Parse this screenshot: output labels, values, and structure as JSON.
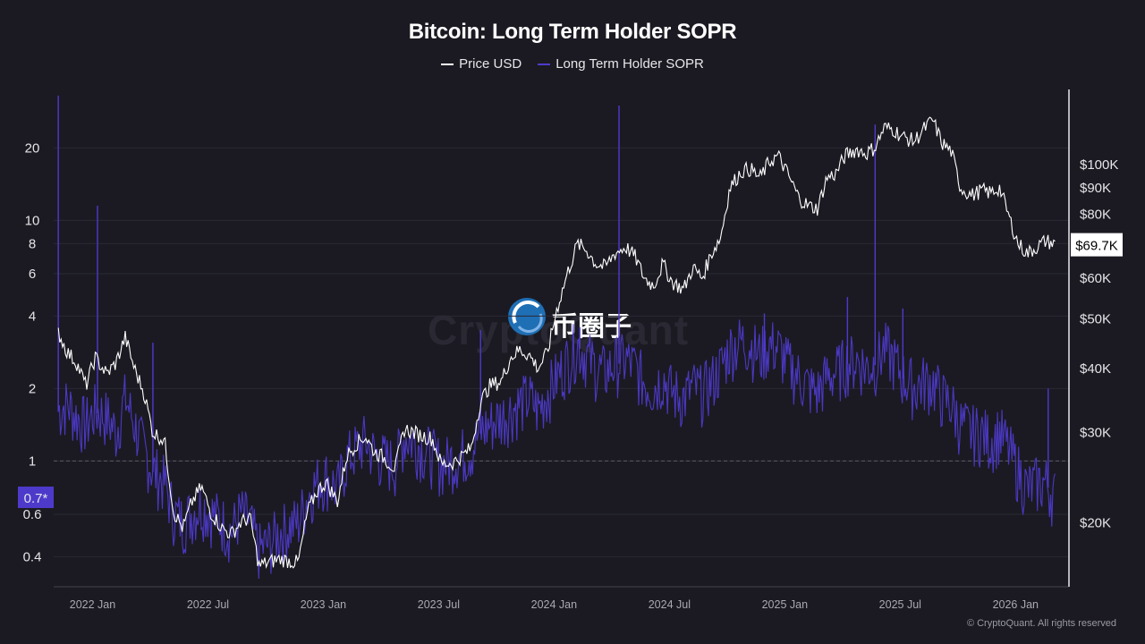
{
  "title": "Bitcoin: Long Term Holder SOPR",
  "legend": {
    "price_label": "Price USD",
    "sopr_label": "Long Term Holder SOPR"
  },
  "watermark": {
    "faint_text": "CryptoQuant",
    "logo_text": "币圈子"
  },
  "copyright": "© CryptoQuant. All rights reserved",
  "colors": {
    "background": "#1b1a22",
    "price": "#ffffff",
    "sopr": "#4d3acb",
    "sopr_badge": "#4d3acb",
    "grid": "#2a2933"
  },
  "chart_data": {
    "type": "line",
    "title": "Bitcoin: Long Term Holder SOPR",
    "x_ticks": [
      "2022 Jan",
      "2022 Jul",
      "2023 Jan",
      "2023 Jul",
      "2024 Jan",
      "2024 Jul",
      "2025 Jan",
      "2025 Jul",
      "2026 Jan"
    ],
    "x_tick_dates": [
      2022.0,
      2022.5,
      2023.0,
      2023.5,
      2024.0,
      2024.5,
      2025.0,
      2025.5,
      2026.0
    ],
    "x_range": [
      2021.94,
      2026.34
    ],
    "left_axis": {
      "scale": "log",
      "range": [
        0.3,
        35
      ],
      "ticks": [
        0.4,
        0.6,
        1,
        2,
        4,
        6,
        8,
        10,
        20
      ],
      "tick_labels": [
        "0.4",
        "0.6",
        "1",
        "2",
        "4",
        "6",
        "8",
        "10",
        "20"
      ],
      "reference_line": 1,
      "current_label": "0.7*"
    },
    "right_axis": {
      "scale": "log",
      "range": [
        15000,
        140000
      ],
      "ticks": [
        20000,
        30000,
        40000,
        50000,
        60000,
        80000,
        90000,
        100000
      ],
      "tick_labels": [
        "$20K",
        "$30K",
        "$40K",
        "$50K",
        "$60K",
        "$80K",
        "$90K",
        "$100K"
      ],
      "current_label": "$69.7K"
    },
    "series": [
      {
        "name": "Price USD",
        "axis": "right",
        "points": [
          [
            2021.96,
            47000
          ],
          [
            2022.0,
            43000
          ],
          [
            2022.04,
            41000
          ],
          [
            2022.08,
            37000
          ],
          [
            2022.12,
            42000
          ],
          [
            2022.17,
            39000
          ],
          [
            2022.21,
            41000
          ],
          [
            2022.25,
            46000
          ],
          [
            2022.29,
            40000
          ],
          [
            2022.33,
            36000
          ],
          [
            2022.37,
            30000
          ],
          [
            2022.42,
            29000
          ],
          [
            2022.46,
            21000
          ],
          [
            2022.5,
            19500
          ],
          [
            2022.54,
            22000
          ],
          [
            2022.58,
            23500
          ],
          [
            2022.62,
            21000
          ],
          [
            2022.67,
            19500
          ],
          [
            2022.71,
            19000
          ],
          [
            2022.75,
            20000
          ],
          [
            2022.79,
            20500
          ],
          [
            2022.83,
            16500
          ],
          [
            2022.88,
            16800
          ],
          [
            2022.92,
            17000
          ],
          [
            2023.0,
            16700
          ],
          [
            2023.04,
            21000
          ],
          [
            2023.08,
            23000
          ],
          [
            2023.12,
            24000
          ],
          [
            2023.17,
            22000
          ],
          [
            2023.21,
            27000
          ],
          [
            2023.25,
            28500
          ],
          [
            2023.29,
            29500
          ],
          [
            2023.33,
            27500
          ],
          [
            2023.37,
            26800
          ],
          [
            2023.42,
            25500
          ],
          [
            2023.46,
            30500
          ],
          [
            2023.5,
            30000
          ],
          [
            2023.54,
            29500
          ],
          [
            2023.58,
            29200
          ],
          [
            2023.62,
            26000
          ],
          [
            2023.67,
            26200
          ],
          [
            2023.71,
            27000
          ],
          [
            2023.75,
            28000
          ],
          [
            2023.79,
            34500
          ],
          [
            2023.83,
            37000
          ],
          [
            2023.88,
            37800
          ],
          [
            2023.92,
            42000
          ],
          [
            2023.96,
            43500
          ],
          [
            2024.0,
            42500
          ],
          [
            2024.04,
            40000
          ],
          [
            2024.08,
            43000
          ],
          [
            2024.12,
            52000
          ],
          [
            2024.17,
            62000
          ],
          [
            2024.21,
            70000
          ],
          [
            2024.25,
            68000
          ],
          [
            2024.29,
            64000
          ],
          [
            2024.33,
            63000
          ],
          [
            2024.37,
            67000
          ],
          [
            2024.42,
            69000
          ],
          [
            2024.46,
            66000
          ],
          [
            2024.5,
            60000
          ],
          [
            2024.54,
            58000
          ],
          [
            2024.58,
            64000
          ],
          [
            2024.62,
            59000
          ],
          [
            2024.67,
            57000
          ],
          [
            2024.71,
            63000
          ],
          [
            2024.75,
            60000
          ],
          [
            2024.79,
            67000
          ],
          [
            2024.83,
            72000
          ],
          [
            2024.87,
            90000
          ],
          [
            2024.92,
            97000
          ],
          [
            2024.96,
            98000
          ],
          [
            2025.0,
            94000
          ],
          [
            2025.04,
            101000
          ],
          [
            2025.08,
            104000
          ],
          [
            2025.12,
            96000
          ],
          [
            2025.17,
            86000
          ],
          [
            2025.21,
            83000
          ],
          [
            2025.25,
            82000
          ],
          [
            2025.29,
            94000
          ],
          [
            2025.33,
            96000
          ],
          [
            2025.37,
            104000
          ],
          [
            2025.42,
            107000
          ],
          [
            2025.46,
            105000
          ],
          [
            2025.5,
            108000
          ],
          [
            2025.54,
            118000
          ],
          [
            2025.58,
            117000
          ],
          [
            2025.62,
            113000
          ],
          [
            2025.67,
            111000
          ],
          [
            2025.71,
            117000
          ],
          [
            2025.75,
            122000
          ],
          [
            2025.79,
            110000
          ],
          [
            2025.83,
            106000
          ],
          [
            2025.87,
            90000
          ],
          [
            2025.92,
            87000
          ],
          [
            2025.96,
            89000
          ],
          [
            2026.0,
            88000
          ],
          [
            2026.04,
            90000
          ],
          [
            2026.08,
            79000
          ],
          [
            2026.12,
            70000
          ],
          [
            2026.16,
            67000
          ],
          [
            2026.2,
            69000
          ],
          [
            2026.24,
            71000
          ],
          [
            2026.28,
            69700
          ]
        ]
      },
      {
        "name": "Long Term Holder SOPR",
        "axis": "left",
        "points": [
          [
            2021.96,
            1.6
          ],
          [
            2022.0,
            1.7
          ],
          [
            2022.04,
            1.5
          ],
          [
            2022.08,
            1.4
          ],
          [
            2022.12,
            1.6
          ],
          [
            2022.17,
            1.5
          ],
          [
            2022.21,
            1.3
          ],
          [
            2022.25,
            1.8
          ],
          [
            2022.29,
            1.4
          ],
          [
            2022.33,
            1.1
          ],
          [
            2022.37,
            0.9
          ],
          [
            2022.42,
            0.8
          ],
          [
            2022.46,
            0.6
          ],
          [
            2022.5,
            0.55
          ],
          [
            2022.54,
            0.6
          ],
          [
            2022.58,
            0.65
          ],
          [
            2022.62,
            0.6
          ],
          [
            2022.67,
            0.55
          ],
          [
            2022.71,
            0.5
          ],
          [
            2022.75,
            0.6
          ],
          [
            2022.79,
            0.55
          ],
          [
            2022.83,
            0.42
          ],
          [
            2022.88,
            0.45
          ],
          [
            2022.92,
            0.5
          ],
          [
            2023.0,
            0.55
          ],
          [
            2023.04,
            0.7
          ],
          [
            2023.08,
            0.8
          ],
          [
            2023.12,
            0.85
          ],
          [
            2023.17,
            0.75
          ],
          [
            2023.21,
            1.0
          ],
          [
            2023.25,
            1.1
          ],
          [
            2023.29,
            1.2
          ],
          [
            2023.33,
            1.05
          ],
          [
            2023.37,
            1.0
          ],
          [
            2023.42,
            0.95
          ],
          [
            2023.46,
            1.25
          ],
          [
            2023.5,
            1.2
          ],
          [
            2023.54,
            1.1
          ],
          [
            2023.58,
            1.05
          ],
          [
            2023.62,
            0.95
          ],
          [
            2023.67,
            1.0
          ],
          [
            2023.71,
            1.05
          ],
          [
            2023.75,
            1.1
          ],
          [
            2023.79,
            1.3
          ],
          [
            2023.83,
            1.4
          ],
          [
            2023.88,
            1.5
          ],
          [
            2023.92,
            1.6
          ],
          [
            2023.96,
            1.7
          ],
          [
            2024.0,
            1.8
          ],
          [
            2024.04,
            1.6
          ],
          [
            2024.08,
            1.9
          ],
          [
            2024.12,
            2.2
          ],
          [
            2024.17,
            2.6
          ],
          [
            2024.21,
            3.0
          ],
          [
            2024.25,
            2.7
          ],
          [
            2024.29,
            2.4
          ],
          [
            2024.33,
            2.3
          ],
          [
            2024.37,
            2.5
          ],
          [
            2024.42,
            2.6
          ],
          [
            2024.46,
            2.4
          ],
          [
            2024.5,
            2.1
          ],
          [
            2024.54,
            2.0
          ],
          [
            2024.58,
            2.2
          ],
          [
            2024.62,
            1.9
          ],
          [
            2024.67,
            1.8
          ],
          [
            2024.71,
            2.0
          ],
          [
            2024.75,
            1.9
          ],
          [
            2024.79,
            2.1
          ],
          [
            2024.83,
            2.4
          ],
          [
            2024.87,
            2.9
          ],
          [
            2024.92,
            3.1
          ],
          [
            2024.96,
            3.0
          ],
          [
            2025.0,
            2.7
          ],
          [
            2025.04,
            3.0
          ],
          [
            2025.08,
            2.9
          ],
          [
            2025.12,
            2.5
          ],
          [
            2025.17,
            2.2
          ],
          [
            2025.21,
            2.0
          ],
          [
            2025.25,
            1.9
          ],
          [
            2025.29,
            2.2
          ],
          [
            2025.33,
            2.3
          ],
          [
            2025.37,
            2.5
          ],
          [
            2025.42,
            2.6
          ],
          [
            2025.46,
            2.4
          ],
          [
            2025.5,
            2.5
          ],
          [
            2025.54,
            2.9
          ],
          [
            2025.58,
            2.6
          ],
          [
            2025.62,
            2.2
          ],
          [
            2025.67,
            2.0
          ],
          [
            2025.71,
            2.1
          ],
          [
            2025.75,
            2.1
          ],
          [
            2025.79,
            1.8
          ],
          [
            2025.83,
            1.7
          ],
          [
            2025.87,
            1.4
          ],
          [
            2025.92,
            1.3
          ],
          [
            2025.96,
            1.3
          ],
          [
            2026.0,
            1.2
          ],
          [
            2026.04,
            1.3
          ],
          [
            2026.08,
            1.1
          ],
          [
            2026.12,
            0.9
          ],
          [
            2026.16,
            0.75
          ],
          [
            2026.2,
            0.8
          ],
          [
            2026.24,
            0.8
          ],
          [
            2026.28,
            0.7
          ]
        ],
        "spikes": [
          [
            2021.96,
            33
          ],
          [
            2022.13,
            11.5
          ],
          [
            2022.37,
            3.1
          ],
          [
            2023.79,
            3.5
          ],
          [
            2024.22,
            3.6
          ],
          [
            2024.39,
            30
          ],
          [
            2025.02,
            4.1
          ],
          [
            2025.38,
            4.8
          ],
          [
            2025.5,
            25
          ],
          [
            2025.62,
            4.3
          ],
          [
            2026.25,
            2.0
          ]
        ]
      }
    ]
  }
}
